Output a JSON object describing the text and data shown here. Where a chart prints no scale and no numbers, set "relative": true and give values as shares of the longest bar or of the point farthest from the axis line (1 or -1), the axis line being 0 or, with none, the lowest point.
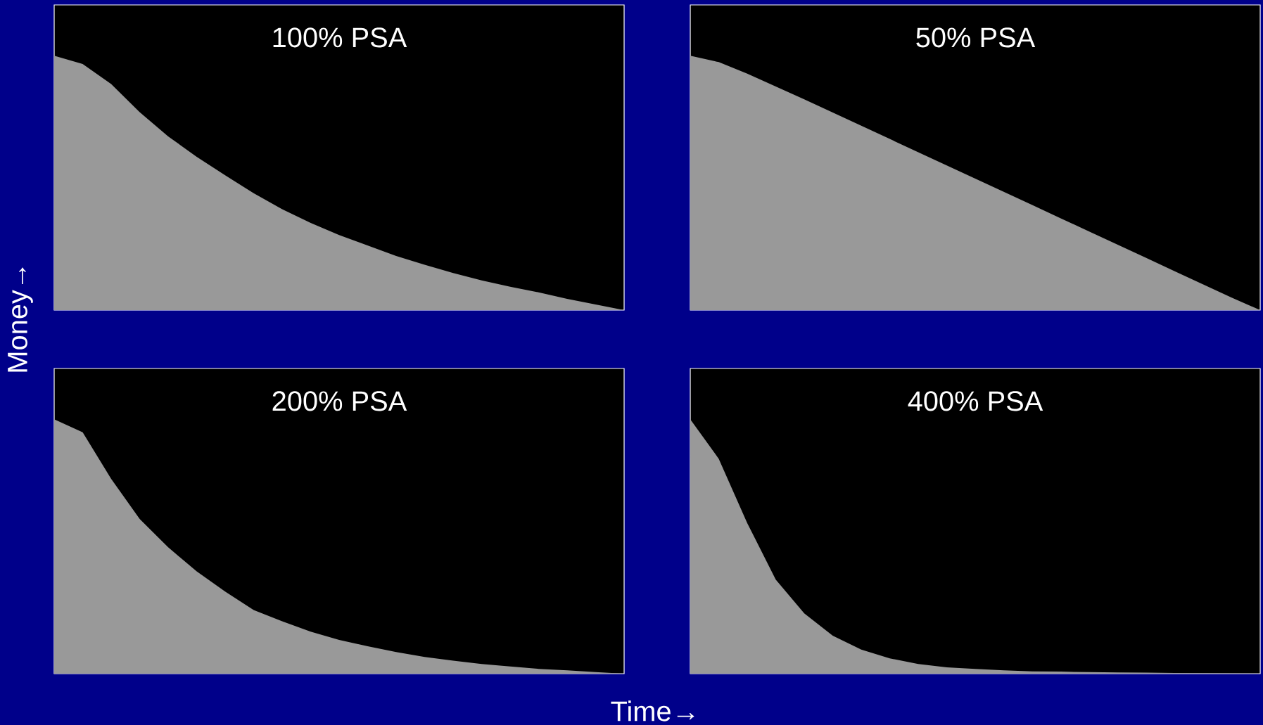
{
  "chart_data": [
    {
      "type": "area",
      "title": "100% PSA",
      "ylabel": "Money→",
      "relative": true,
      "color": "#999999",
      "categories": [
        null,
        null,
        null,
        null,
        null,
        null,
        null,
        null,
        null,
        null,
        null,
        null,
        null,
        null,
        null,
        null,
        null,
        null,
        null,
        null,
        null
      ],
      "values": [
        1.0,
        0.968,
        0.889,
        0.778,
        0.683,
        0.603,
        0.53,
        0.46,
        0.397,
        0.343,
        0.295,
        0.254,
        0.213,
        0.178,
        0.146,
        0.117,
        0.092,
        0.07,
        0.044,
        0.022,
        0
      ]
    },
    {
      "type": "area",
      "title": "50% PSA",
      "relative": true,
      "color": "#999999",
      "categories": [
        null,
        null,
        null,
        null,
        null,
        null,
        null,
        null,
        null,
        null,
        null,
        null,
        null,
        null,
        null,
        null,
        null,
        null,
        null,
        null,
        null
      ],
      "values": [
        1.0,
        0.975,
        0.93,
        0.879,
        0.829,
        0.777,
        0.725,
        0.673,
        0.621,
        0.569,
        0.517,
        0.465,
        0.413,
        0.361,
        0.309,
        0.257,
        0.205,
        0.153,
        0.101,
        0.049,
        0
      ]
    },
    {
      "type": "area",
      "title": "200% PSA",
      "xlabel": "Time→",
      "relative": true,
      "color": "#999999",
      "categories": [
        null,
        null,
        null,
        null,
        null,
        null,
        null,
        null,
        null,
        null,
        null,
        null,
        null,
        null,
        null,
        null,
        null,
        null,
        null,
        null,
        null
      ],
      "values": [
        1.0,
        0.949,
        0.766,
        0.608,
        0.497,
        0.402,
        0.323,
        0.25,
        0.206,
        0.165,
        0.133,
        0.108,
        0.085,
        0.066,
        0.051,
        0.038,
        0.028,
        0.019,
        0.013,
        0.006,
        0
      ]
    },
    {
      "type": "area",
      "title": "400% PSA",
      "relative": true,
      "color": "#999999",
      "categories": [
        null,
        null,
        null,
        null,
        null,
        null,
        null,
        null,
        null,
        null,
        null,
        null,
        null,
        null,
        null,
        null,
        null,
        null,
        null,
        null,
        null
      ],
      "values": [
        1.0,
        0.845,
        0.592,
        0.37,
        0.237,
        0.149,
        0.095,
        0.06,
        0.038,
        0.025,
        0.019,
        0.013,
        0.009,
        0.008,
        0.006,
        0.005,
        0.004,
        0.003,
        0.002,
        0.001,
        0
      ]
    }
  ]
}
